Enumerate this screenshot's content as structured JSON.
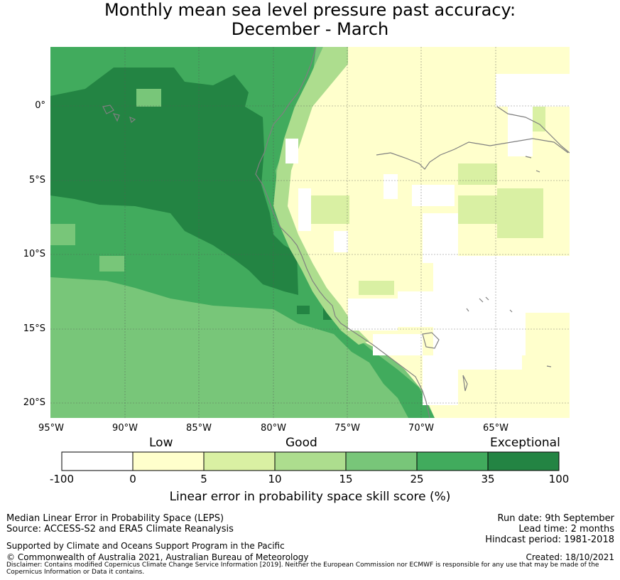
{
  "title": {
    "line1": "Monthly mean sea level pressure past accuracy:",
    "line2": "December - March"
  },
  "map": {
    "lon_ticks": [
      "95°W",
      "90°W",
      "85°W",
      "80°W",
      "75°W",
      "70°W",
      "65°W"
    ],
    "lat_ticks": [
      "0°",
      "5°S",
      "10°S",
      "15°S",
      "20°S"
    ],
    "region": "Eastern Pacific / west coast of South America",
    "coastline_color": "#808080"
  },
  "colorbar": {
    "categories": [
      "Low",
      "Good",
      "Exceptional"
    ],
    "ticks": [
      "-100",
      "0",
      "5",
      "10",
      "15",
      "25",
      "35",
      "100"
    ],
    "colors": [
      "#ffffff",
      "#ffffcc",
      "#d9f0a3",
      "#addd8e",
      "#78c679",
      "#41ab5d",
      "#238443"
    ],
    "label": "Linear error in probability space skill score (%)"
  },
  "footer": {
    "left1": "Median Linear Error in Probability Space (LEPS)",
    "left2": "Source: ACCESS-S2 and ERA5 Climate Reanalysis",
    "support": "Supported by Climate and Oceans Support Program in the Pacific",
    "copyright": "© Commonwealth of Australia 2021, Australian Bureau of Meteorology",
    "run_date": "Run date: 9th September",
    "lead_time": "Lead time: 2 months",
    "hindcast": "Hindcast period: 1981-2018",
    "created": "Created: 18/10/2021",
    "disclaimer": "Disclaimer: Contains modified Copernicus Climate Change Service Information [2019]. Neither the European Commission nor ECMWF is responsible for any use that may be made of the Copernicus Information or Data it contains."
  }
}
